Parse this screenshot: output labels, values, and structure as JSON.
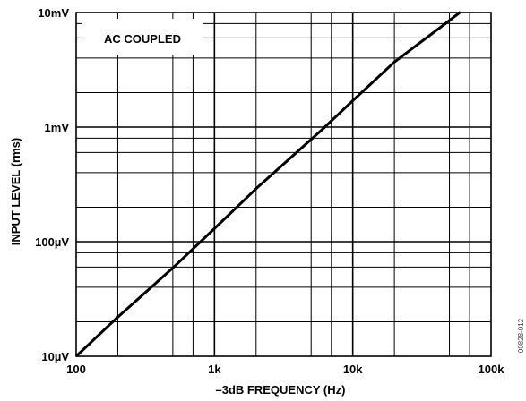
{
  "chart_data": {
    "type": "line",
    "xscale": "log",
    "yscale": "log",
    "xlabel": "–3dB FREQUENCY (Hz)",
    "ylabel": "INPUT LEVEL (rms)",
    "xlim": [
      100,
      100000
    ],
    "ylim": [
      1e-05,
      0.01
    ],
    "x_ticks": [
      {
        "value": 100,
        "label": "100"
      },
      {
        "value": 1000,
        "label": "1k"
      },
      {
        "value": 10000,
        "label": "10k"
      },
      {
        "value": 100000,
        "label": "100k"
      }
    ],
    "y_ticks": [
      {
        "value": 1e-05,
        "label": "10µV"
      },
      {
        "value": 0.0001,
        "label": "100µV"
      },
      {
        "value": 0.001,
        "label": "1mV"
      },
      {
        "value": 0.01,
        "label": "10mV"
      }
    ],
    "grid": true,
    "annotation": "AC COUPLED",
    "figure_id": "00828-012",
    "series": [
      {
        "x": [
          100,
          200,
          500,
          1000,
          2000,
          5000,
          6000,
          10000,
          20000,
          50000,
          60000
        ],
        "y": [
          1e-05,
          2.2e-05,
          5.9e-05,
          0.00013,
          0.00029,
          0.00078,
          0.00095,
          0.0017,
          0.0037,
          0.0085,
          0.0101
        ]
      }
    ]
  }
}
